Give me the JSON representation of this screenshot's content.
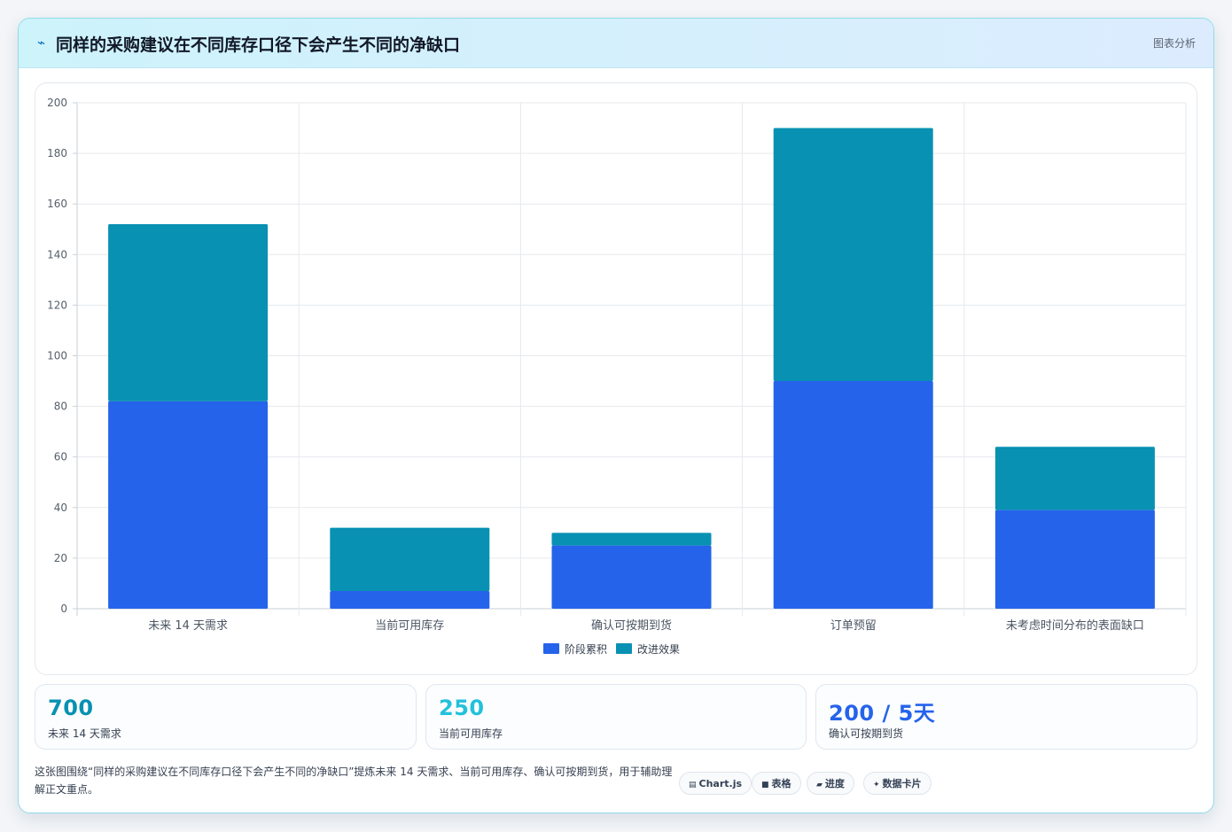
{
  "header": {
    "icon": "chart-line-icon",
    "title": "同样的采购建议在不同库存口径下会产生不同的净缺口",
    "right_label": "图表分析"
  },
  "chart_data": {
    "type": "bar",
    "stacked": true,
    "categories": [
      "未来 14 天需求",
      "当前可用库存",
      "确认可按期到货",
      "订单预留",
      "未考虑时间分布的表面缺口"
    ],
    "series": [
      {
        "name": "阶段累积",
        "color": "#2563eb",
        "values": [
          82,
          7,
          25,
          90,
          39
        ]
      },
      {
        "name": "改进效果",
        "color": "#0891b2",
        "values": [
          70,
          25,
          5,
          100,
          25
        ]
      }
    ],
    "ylim": [
      0,
      200
    ],
    "yticks": [
      0,
      20,
      40,
      60,
      80,
      100,
      120,
      140,
      160,
      180,
      200
    ],
    "grid": true,
    "legend_position": "bottom"
  },
  "stats": [
    {
      "value": "700",
      "label": "未来 14 天需求",
      "color": "#0891b2"
    },
    {
      "value": "250",
      "label": "当前可用库存",
      "color": "#22c1dc"
    },
    {
      "value": "200 / 5天",
      "label": "确认可按期到货",
      "color": "#2563eb"
    }
  ],
  "footer": {
    "text": "这张图围绕“同样的采购建议在不同库存口径下会产生不同的净缺口”提炼未来 14 天需求、当前可用库存、确认可按期到货，用于辅助理解正文重点。",
    "tags": [
      {
        "icon": "chart-js-icon",
        "glyph": "▤",
        "label": "Chart.js"
      },
      {
        "icon": "table-icon",
        "glyph": "■",
        "label": "表格"
      },
      {
        "icon": "progress-icon",
        "glyph": "▰",
        "label": "进度"
      },
      {
        "icon": "data-card-icon",
        "glyph": "✦",
        "label": "数据卡片"
      }
    ]
  }
}
